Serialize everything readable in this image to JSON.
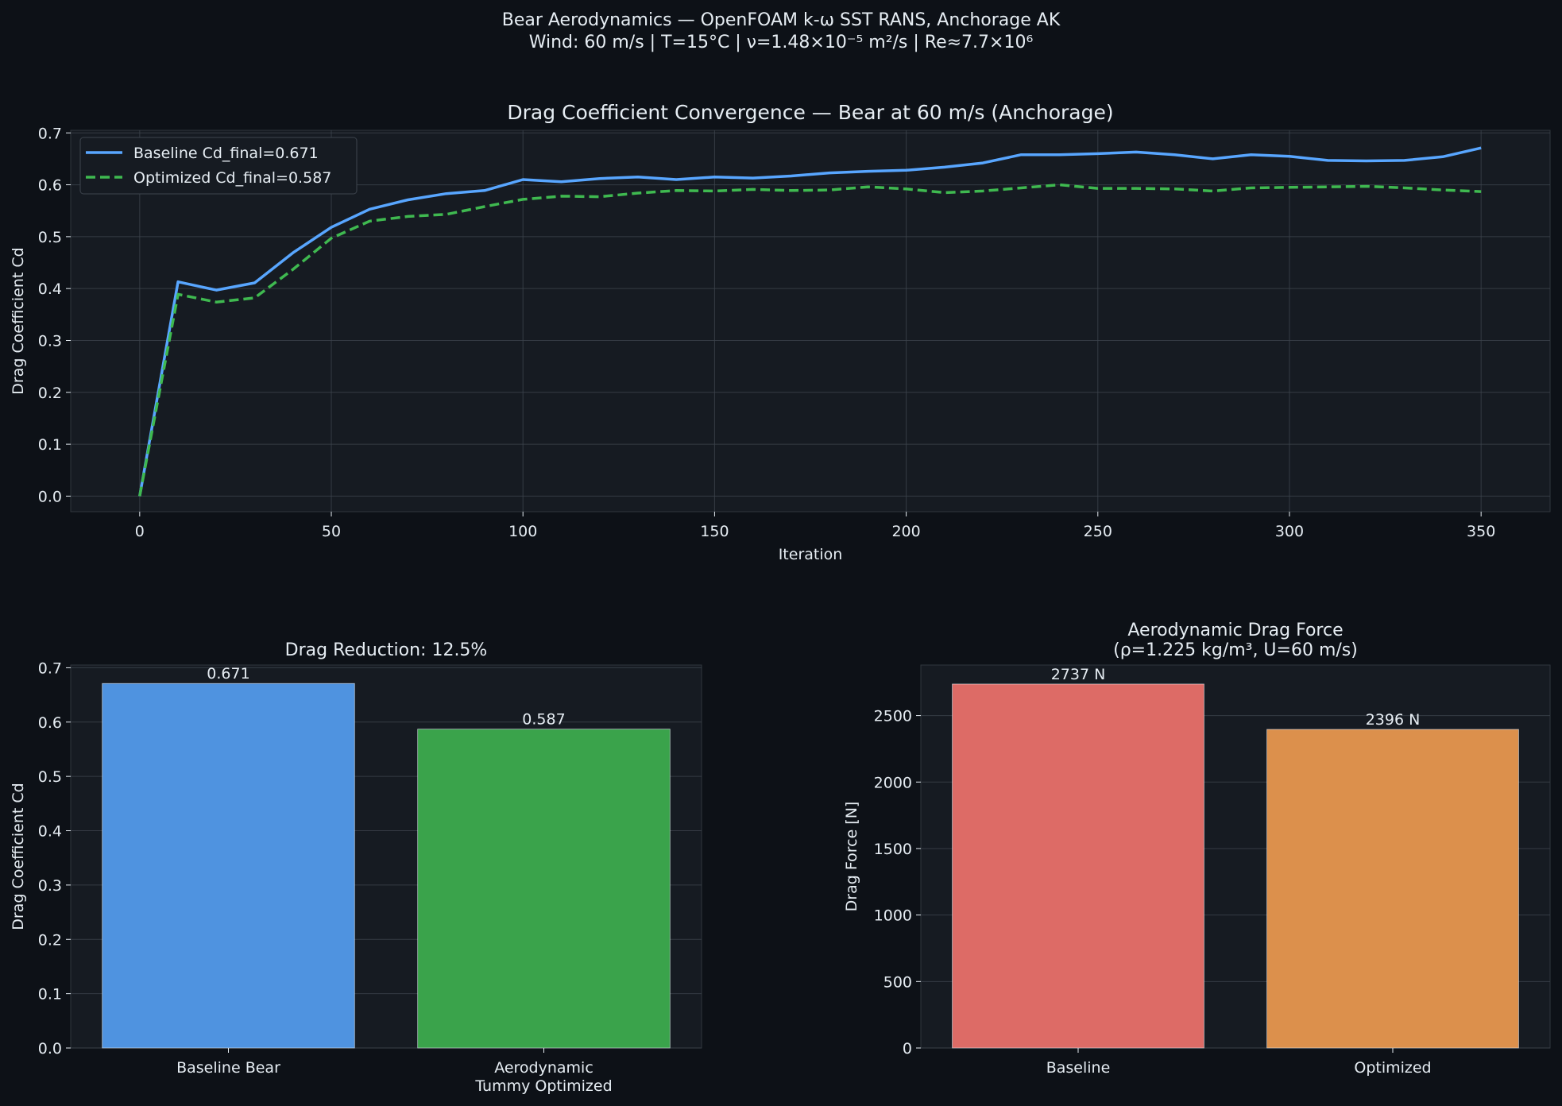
{
  "figure": {
    "suptitle_line1": "Bear Aerodynamics — OpenFOAM k-ω SST RANS, Anchorage AK",
    "suptitle_line2": "Wind: 60 m/s | T=15°C | ν=1.48×10⁻⁵ m²/s | Re≈7.7×10⁶"
  },
  "colors": {
    "background": "#0d1117",
    "panel": "#161b22",
    "grid": "#3d444d",
    "text": "#e6edf3",
    "baseline_line": "#58a6ff",
    "optimized_line": "#3fb950",
    "bar_baseline_cd": "#4f93e0",
    "bar_optimized_cd": "#3aa34b",
    "bar_baseline_force": "#dd6b66",
    "bar_optimized_force": "#dc904c"
  },
  "chart_data": [
    {
      "type": "line",
      "title": "Drag Coefficient Convergence — Bear at 60 m/s (Anchorage)",
      "xlabel": "Iteration",
      "ylabel": "Drag Coefficient Cd",
      "xlim": [
        -18,
        368
      ],
      "ylim": [
        -0.03,
        0.705
      ],
      "xticks": [
        0,
        50,
        100,
        150,
        200,
        250,
        300,
        350
      ],
      "yticks": [
        0.0,
        0.1,
        0.2,
        0.3,
        0.4,
        0.5,
        0.6,
        0.7
      ],
      "ytick_labels": [
        "0.0",
        "0.1",
        "0.2",
        "0.3",
        "0.4",
        "0.5",
        "0.6",
        "0.7"
      ],
      "grid": true,
      "legend_position": "upper-left",
      "x": [
        0,
        10,
        20,
        30,
        40,
        50,
        60,
        70,
        80,
        90,
        100,
        110,
        120,
        130,
        140,
        150,
        160,
        170,
        180,
        190,
        200,
        210,
        220,
        230,
        240,
        250,
        260,
        270,
        280,
        290,
        300,
        310,
        320,
        330,
        340,
        350
      ],
      "series": [
        {
          "name": "Baseline  Cd_final=0.671",
          "color": "#58a6ff",
          "style": "solid",
          "values": [
            0.0,
            0.413,
            0.397,
            0.411,
            0.469,
            0.518,
            0.553,
            0.571,
            0.583,
            0.589,
            0.61,
            0.606,
            0.612,
            0.615,
            0.61,
            0.615,
            0.613,
            0.617,
            0.623,
            0.626,
            0.628,
            0.634,
            0.642,
            0.658,
            0.658,
            0.66,
            0.663,
            0.658,
            0.65,
            0.658,
            0.655,
            0.647,
            0.646,
            0.647,
            0.654,
            0.671
          ]
        },
        {
          "name": "Optimized Cd_final=0.587",
          "color": "#3fb950",
          "style": "dashed",
          "values": [
            0.0,
            0.389,
            0.374,
            0.382,
            0.437,
            0.497,
            0.53,
            0.539,
            0.543,
            0.558,
            0.572,
            0.578,
            0.577,
            0.584,
            0.589,
            0.588,
            0.591,
            0.589,
            0.59,
            0.596,
            0.592,
            0.585,
            0.588,
            0.594,
            0.6,
            0.593,
            0.593,
            0.592,
            0.588,
            0.594,
            0.595,
            0.596,
            0.597,
            0.594,
            0.59,
            0.587
          ]
        }
      ]
    },
    {
      "type": "bar",
      "title": "Drag Reduction: 12.5%",
      "xlabel": "",
      "ylabel": "Drag Coefficient Cd",
      "categories": [
        "Baseline Bear",
        "Aerodynamic\nTummy Optimized"
      ],
      "values": [
        0.671,
        0.587
      ],
      "value_labels": [
        "0.671",
        "0.587"
      ],
      "colors": [
        "#4f93e0",
        "#3aa34b"
      ],
      "ylim": [
        0,
        0.705
      ],
      "yticks": [
        0.0,
        0.1,
        0.2,
        0.3,
        0.4,
        0.5,
        0.6,
        0.7
      ],
      "ytick_labels": [
        "0.0",
        "0.1",
        "0.2",
        "0.3",
        "0.4",
        "0.5",
        "0.6",
        "0.7"
      ],
      "grid": true
    },
    {
      "type": "bar",
      "title": "Aerodynamic Drag Force",
      "subtitle": "(ρ=1.225 kg/m³, U=60 m/s)",
      "xlabel": "",
      "ylabel": "Drag Force [N]",
      "categories": [
        "Baseline",
        "Optimized"
      ],
      "values": [
        2737,
        2396
      ],
      "value_labels": [
        "2737 N",
        "2396 N"
      ],
      "colors": [
        "#dd6b66",
        "#dc904c"
      ],
      "ylim": [
        0,
        2880
      ],
      "yticks": [
        0,
        500,
        1000,
        1500,
        2000,
        2500
      ],
      "ytick_labels": [
        "0",
        "500",
        "1000",
        "1500",
        "2000",
        "2500"
      ],
      "grid": true
    }
  ]
}
